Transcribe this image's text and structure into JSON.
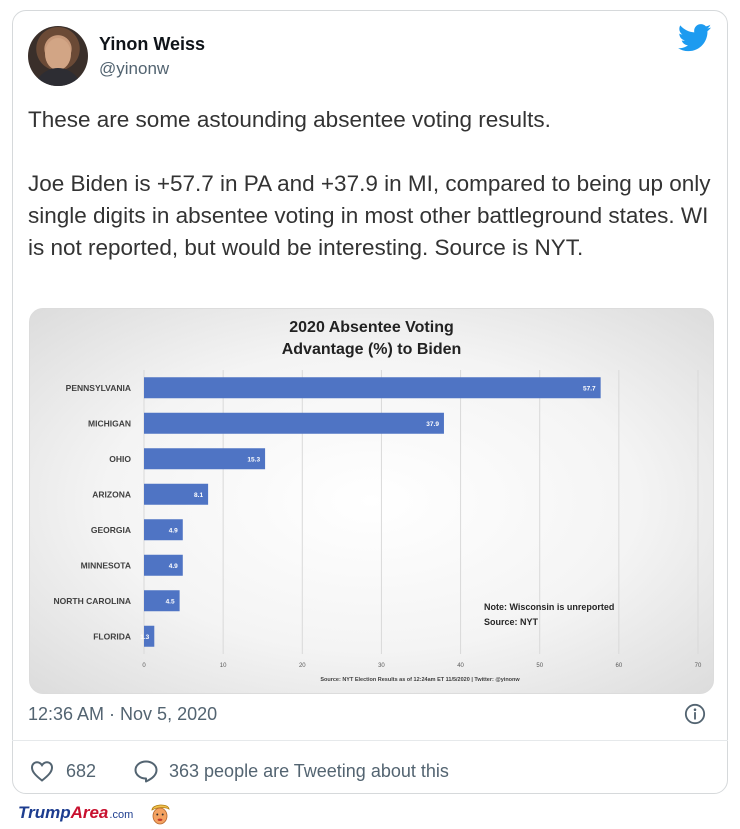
{
  "tweet": {
    "author_name": "Yinon Weiss",
    "author_handle": "@yinonw",
    "paragraph_1": "These are some astounding absentee voting results.",
    "paragraph_2": "Joe Biden is +57.7 in PA and +37.9 in MI, compared to being up only single digits in absentee voting in most other battleground states. WI is not reported, but would be interesting. Source is NYT.",
    "timestamp": "12:36 AM · Nov 5, 2020",
    "likes": "682",
    "reply_text": "363 people are Tweeting about this"
  },
  "colors": {
    "bar": "#4f74c4",
    "twitter_blue": "#1d9bf0",
    "muted": "#536471"
  },
  "icons": {
    "brand": "twitter-bird-icon",
    "info": "info-icon",
    "like": "heart-icon",
    "reply": "speech-bubble-icon",
    "footer_mascot": "trump-face-icon"
  },
  "chart_data": {
    "type": "bar",
    "orientation": "horizontal",
    "title_line_1": "2020 Absentee Voting",
    "title_line_2": "Advantage (%) to Biden",
    "categories": [
      "PENNSYLVANIA",
      "MICHIGAN",
      "OHIO",
      "ARIZONA",
      "GEORGIA",
      "MINNESOTA",
      "NORTH CAROLINA",
      "FLORIDA"
    ],
    "values": [
      57.7,
      37.9,
      15.3,
      8.1,
      4.9,
      4.9,
      4.5,
      1.3
    ],
    "data_labels": [
      "57.7",
      "37.9",
      "15.3",
      "8.1",
      "4.9",
      "4.9",
      "4.5",
      "1.3"
    ],
    "xlim": [
      0,
      70
    ],
    "x_ticks": [
      "0",
      "10",
      "20",
      "30",
      "40",
      "50",
      "60",
      "70"
    ],
    "grid": true,
    "note_line_1": "Note: Wisconsin is unreported",
    "note_line_2": "Source: NYT",
    "source_line": "Source: NYT Election Results as of 12:24am ET 11/5/2020  |  Twitter: @yinonw"
  },
  "footer": {
    "brand_part_1": "Trump",
    "brand_part_2": "Area",
    "brand_part_3": ".com"
  }
}
